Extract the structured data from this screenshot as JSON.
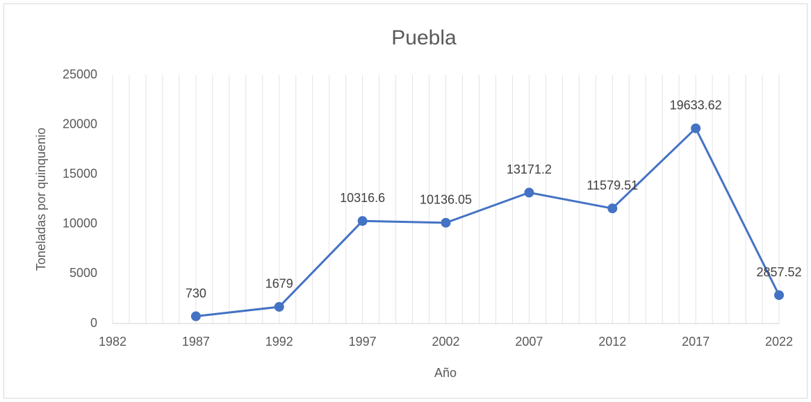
{
  "chart_data": {
    "type": "line",
    "title": "Puebla",
    "xlabel": "Año",
    "ylabel": "Toneladas por quinquenio",
    "x": [
      1987,
      1992,
      1997,
      2002,
      2007,
      2012,
      2017,
      2022
    ],
    "series": [
      {
        "name": "Puebla",
        "color": "#4472c4",
        "values": [
          730,
          1679,
          10316.6,
          10136.05,
          13171.2,
          11579.51,
          19633.62,
          2857.52
        ]
      }
    ],
    "xlim": [
      1982,
      2022
    ],
    "xticks": [
      1982,
      1987,
      1992,
      1997,
      2002,
      2007,
      2012,
      2017,
      2022
    ],
    "xminorticks": [
      1982,
      1983,
      1984,
      1985,
      1986,
      1987,
      1988,
      1989,
      1990,
      1991,
      1992,
      1993,
      1994,
      1995,
      1996,
      1997,
      1998,
      1999,
      2000,
      2001,
      2002,
      2003,
      2004,
      2005,
      2006,
      2007,
      2008,
      2009,
      2010,
      2011,
      2012,
      2013,
      2014,
      2015,
      2016,
      2017,
      2018,
      2019,
      2020,
      2021,
      2022
    ],
    "ylim": [
      0,
      25000
    ],
    "yticks": [
      0,
      5000,
      10000,
      15000,
      20000,
      25000
    ],
    "grid": "x-minor"
  }
}
